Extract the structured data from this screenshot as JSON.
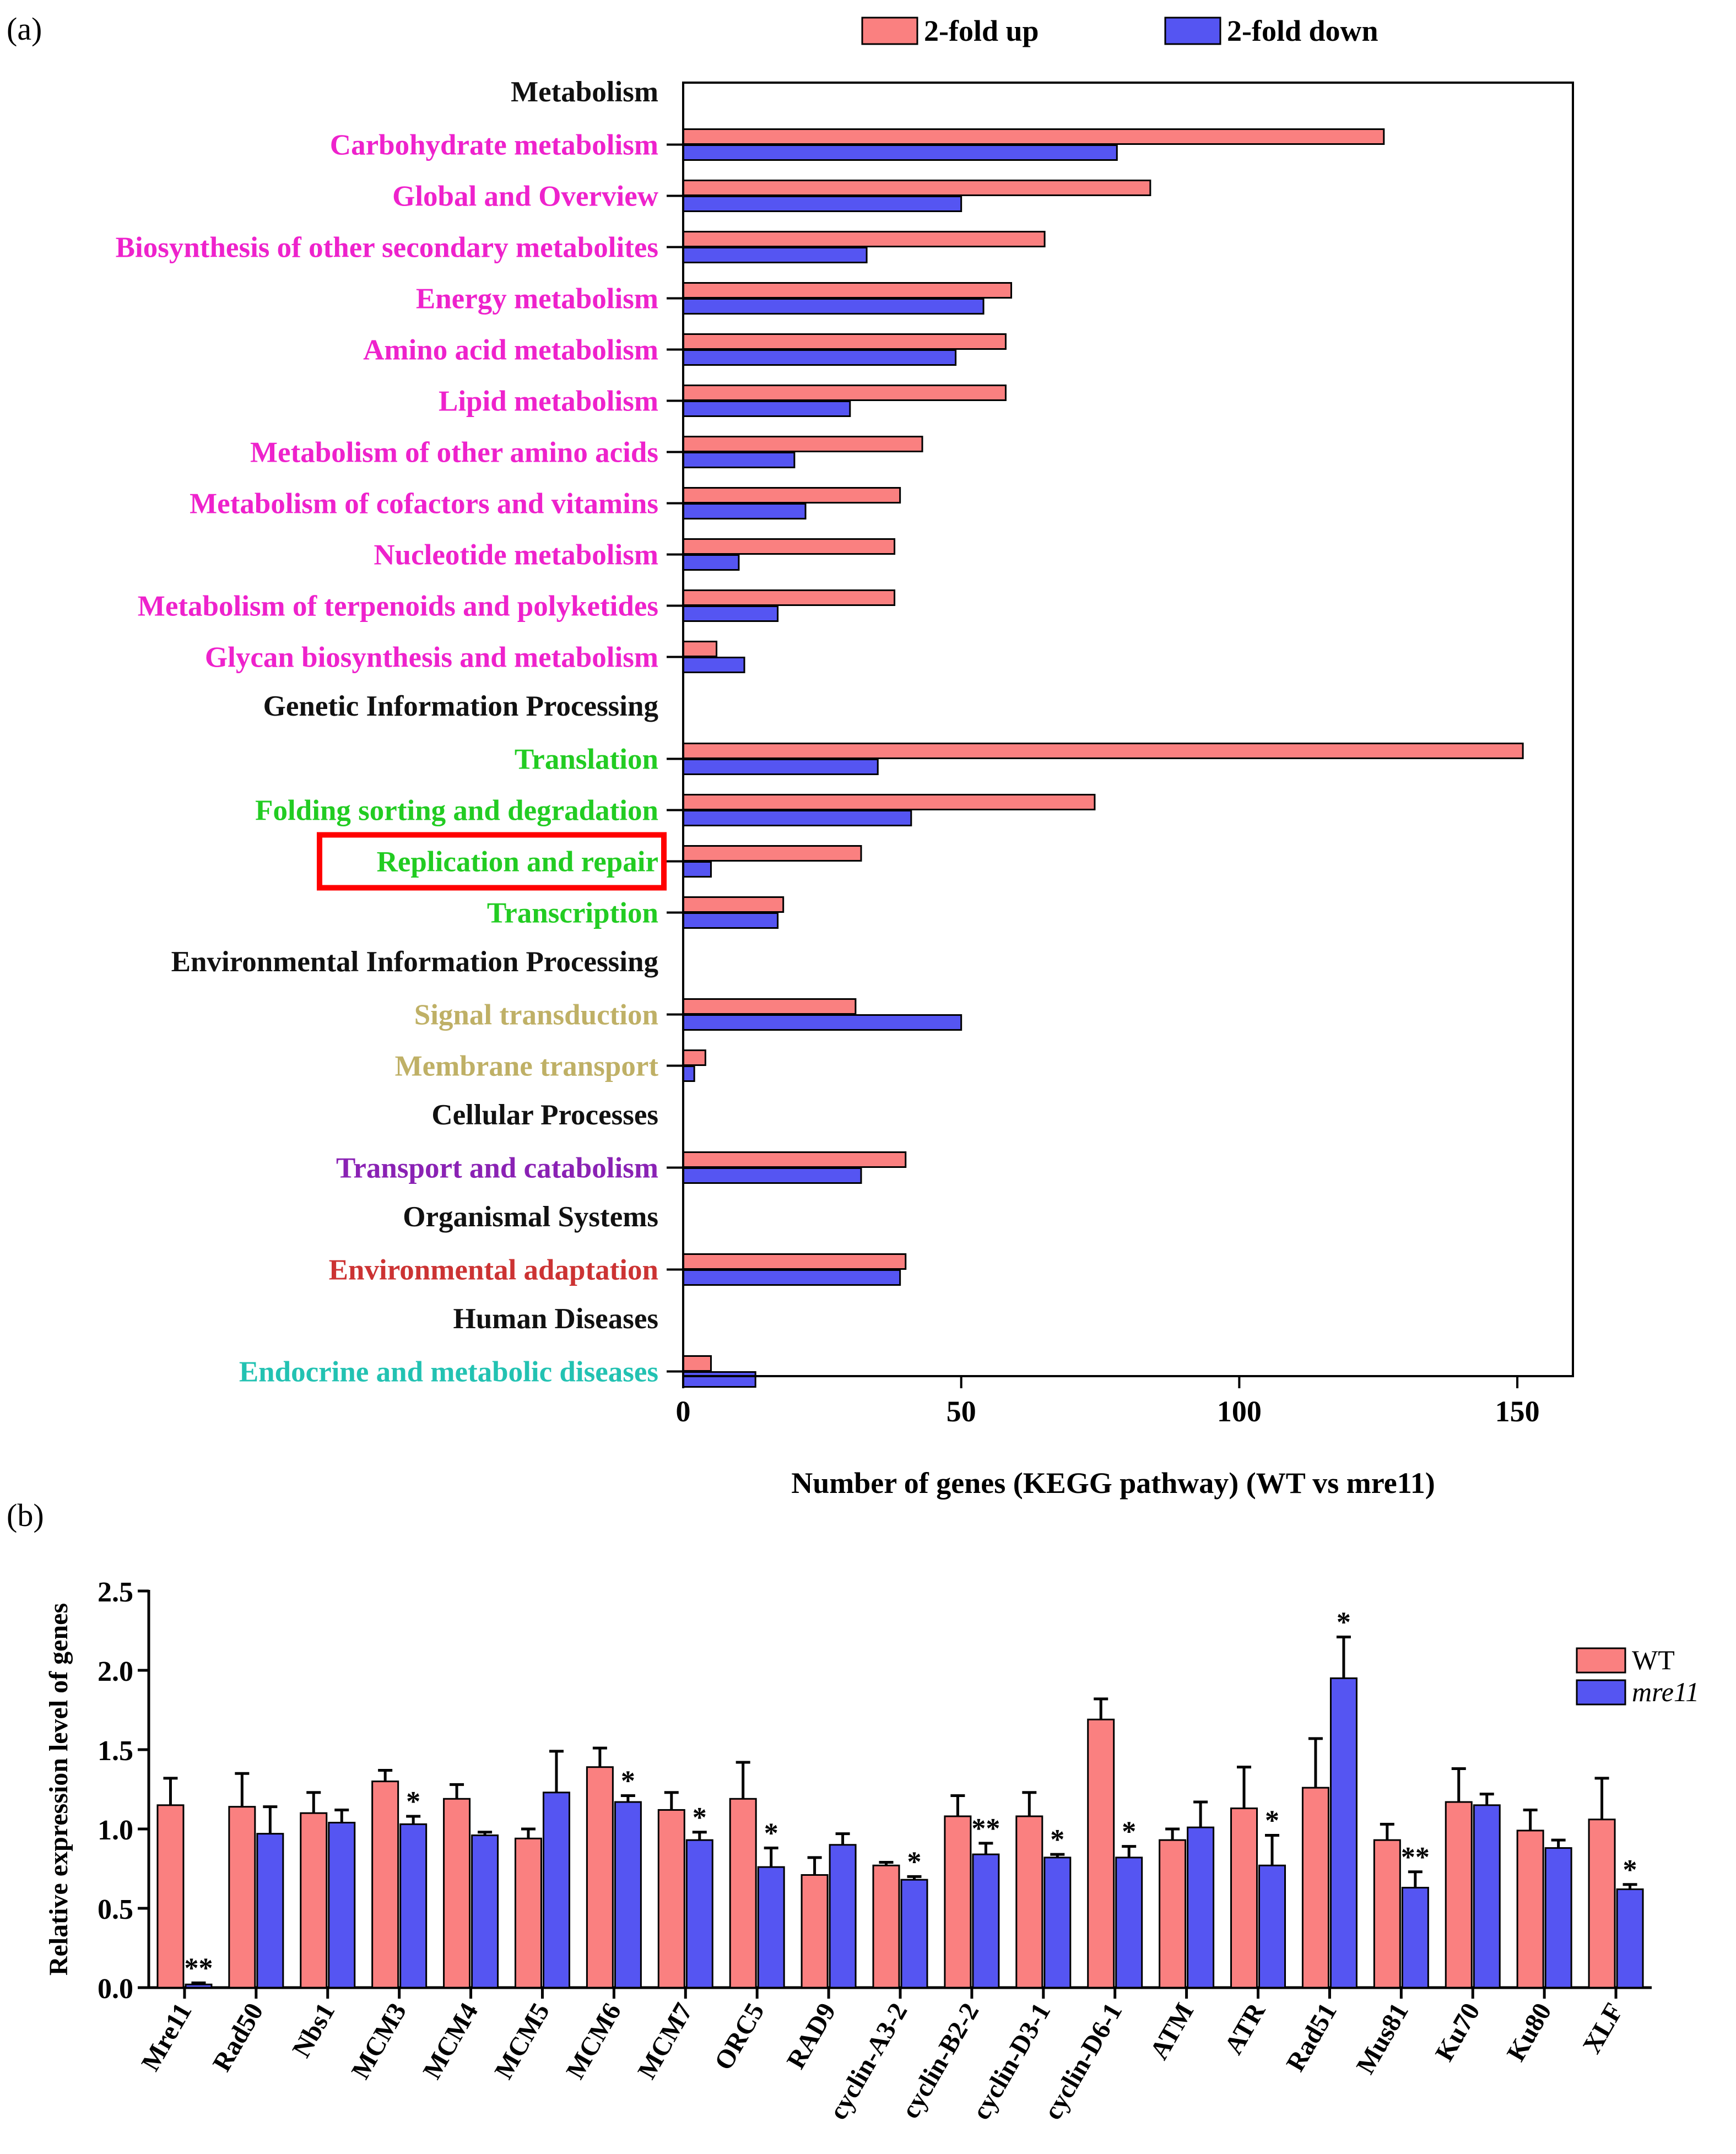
{
  "colors": {
    "up": "#fa8080",
    "down": "#5555f2",
    "Metabolism": "#ee22cc",
    "Genetic Information Processing": "#22cc22",
    "Environmental Information Processing": "#bfb066",
    "Cellular Processes": "#8a22b4",
    "Organismal Systems": "#cc3333",
    "Human Diseases": "#22c2b2",
    "highlight": "#ff0000",
    "header": "#111111"
  },
  "panel_a_label": "(a)",
  "panel_b_label": "(b)",
  "chart_data": [
    {
      "panel": "a",
      "type": "bar",
      "orientation": "horizontal",
      "xlabel": "Number of genes (KEGG pathway) (WT vs mre11)",
      "xlim": [
        0,
        160
      ],
      "xticks": [
        0,
        50,
        100,
        150
      ],
      "legend": {
        "placement": "top",
        "entries": [
          "2-fold up",
          "2-fold down"
        ]
      },
      "highlighted_category": "Replication and repair",
      "groups": [
        {
          "name": "Metabolism",
          "categories": [
            {
              "name": "Carbohydrate metabolism",
              "up": 126,
              "down": 78
            },
            {
              "name": "Global and Overview",
              "up": 84,
              "down": 50
            },
            {
              "name": "Biosynthesis of other secondary metabolites",
              "up": 65,
              "down": 33
            },
            {
              "name": "Energy metabolism",
              "up": 59,
              "down": 54
            },
            {
              "name": "Amino acid metabolism",
              "up": 58,
              "down": 49
            },
            {
              "name": "Lipid metabolism",
              "up": 58,
              "down": 30
            },
            {
              "name": "Metabolism of other amino acids",
              "up": 43,
              "down": 20
            },
            {
              "name": "Metabolism of cofactors and vitamins",
              "up": 39,
              "down": 22
            },
            {
              "name": "Nucleotide metabolism",
              "up": 38,
              "down": 10
            },
            {
              "name": "Metabolism of terpenoids and polyketides",
              "up": 38,
              "down": 17
            },
            {
              "name": "Glycan biosynthesis and metabolism",
              "up": 6,
              "down": 11
            }
          ]
        },
        {
          "name": "Genetic Information Processing",
          "categories": [
            {
              "name": "Translation",
              "up": 151,
              "down": 35
            },
            {
              "name": "Folding sorting and degradation",
              "up": 74,
              "down": 41
            },
            {
              "name": "Replication and repair",
              "up": 32,
              "down": 5
            },
            {
              "name": "Transcription",
              "up": 18,
              "down": 17
            }
          ]
        },
        {
          "name": "Environmental Information Processing",
          "categories": [
            {
              "name": "Signal transduction",
              "up": 31,
              "down": 50
            },
            {
              "name": "Membrane transport",
              "up": 4,
              "down": 2
            }
          ]
        },
        {
          "name": "Cellular Processes",
          "categories": [
            {
              "name": "Transport and catabolism",
              "up": 40,
              "down": 32
            }
          ]
        },
        {
          "name": "Organismal Systems",
          "categories": [
            {
              "name": "Environmental adaptation",
              "up": 40,
              "down": 39
            }
          ]
        },
        {
          "name": "Human Diseases",
          "categories": [
            {
              "name": "Endocrine and metabolic diseases",
              "up": 5,
              "down": 13
            }
          ]
        }
      ]
    },
    {
      "panel": "b",
      "type": "bar",
      "orientation": "vertical",
      "ylabel": "Relative expression level of genes",
      "ylim": [
        0,
        2.5
      ],
      "yticks": [
        "0.0",
        "0.5",
        "1.0",
        "1.5",
        "2.0",
        "2.5"
      ],
      "legend": {
        "placement": "top-right",
        "entries": [
          "WT",
          "mre11"
        ]
      },
      "categories": [
        "Mre11",
        "Rad50",
        "Nbs1",
        "MCM3",
        "MCM4",
        "MCM5",
        "MCM6",
        "MCM7",
        "ORC5",
        "RAD9",
        "cyclin-A3-2",
        "cyclin-B2-2",
        "cyclin-D3-1",
        "cyclin-D6-1",
        "ATM",
        "ATR",
        "Rad51",
        "Mus81",
        "Ku70",
        "Ku80",
        "XLF"
      ],
      "series": [
        {
          "name": "WT",
          "values": [
            1.15,
            1.14,
            1.1,
            1.3,
            1.19,
            0.94,
            1.39,
            1.12,
            1.19,
            0.71,
            0.77,
            1.08,
            1.08,
            1.69,
            0.93,
            1.13,
            1.26,
            0.93,
            1.17,
            0.99,
            1.06
          ],
          "errors": [
            0.17,
            0.21,
            0.13,
            0.07,
            0.09,
            0.06,
            0.12,
            0.11,
            0.23,
            0.11,
            0.02,
            0.13,
            0.15,
            0.13,
            0.07,
            0.26,
            0.31,
            0.1,
            0.21,
            0.13,
            0.26
          ]
        },
        {
          "name": "mre11",
          "values": [
            0.02,
            0.97,
            1.04,
            1.03,
            0.96,
            1.23,
            1.17,
            0.93,
            0.76,
            0.9,
            0.68,
            0.84,
            0.82,
            0.82,
            1.01,
            0.77,
            1.95,
            0.63,
            1.15,
            0.88,
            0.62
          ],
          "errors": [
            0.01,
            0.17,
            0.08,
            0.05,
            0.02,
            0.26,
            0.04,
            0.05,
            0.12,
            0.07,
            0.02,
            0.07,
            0.02,
            0.07,
            0.16,
            0.19,
            0.26,
            0.1,
            0.07,
            0.05,
            0.03
          ]
        }
      ],
      "significance": [
        "**",
        "",
        "",
        "*",
        "",
        "",
        "*",
        "*",
        "*",
        "",
        "*",
        "**",
        "*",
        "*",
        "",
        "*",
        "*",
        "**",
        "",
        "",
        "*"
      ]
    }
  ]
}
